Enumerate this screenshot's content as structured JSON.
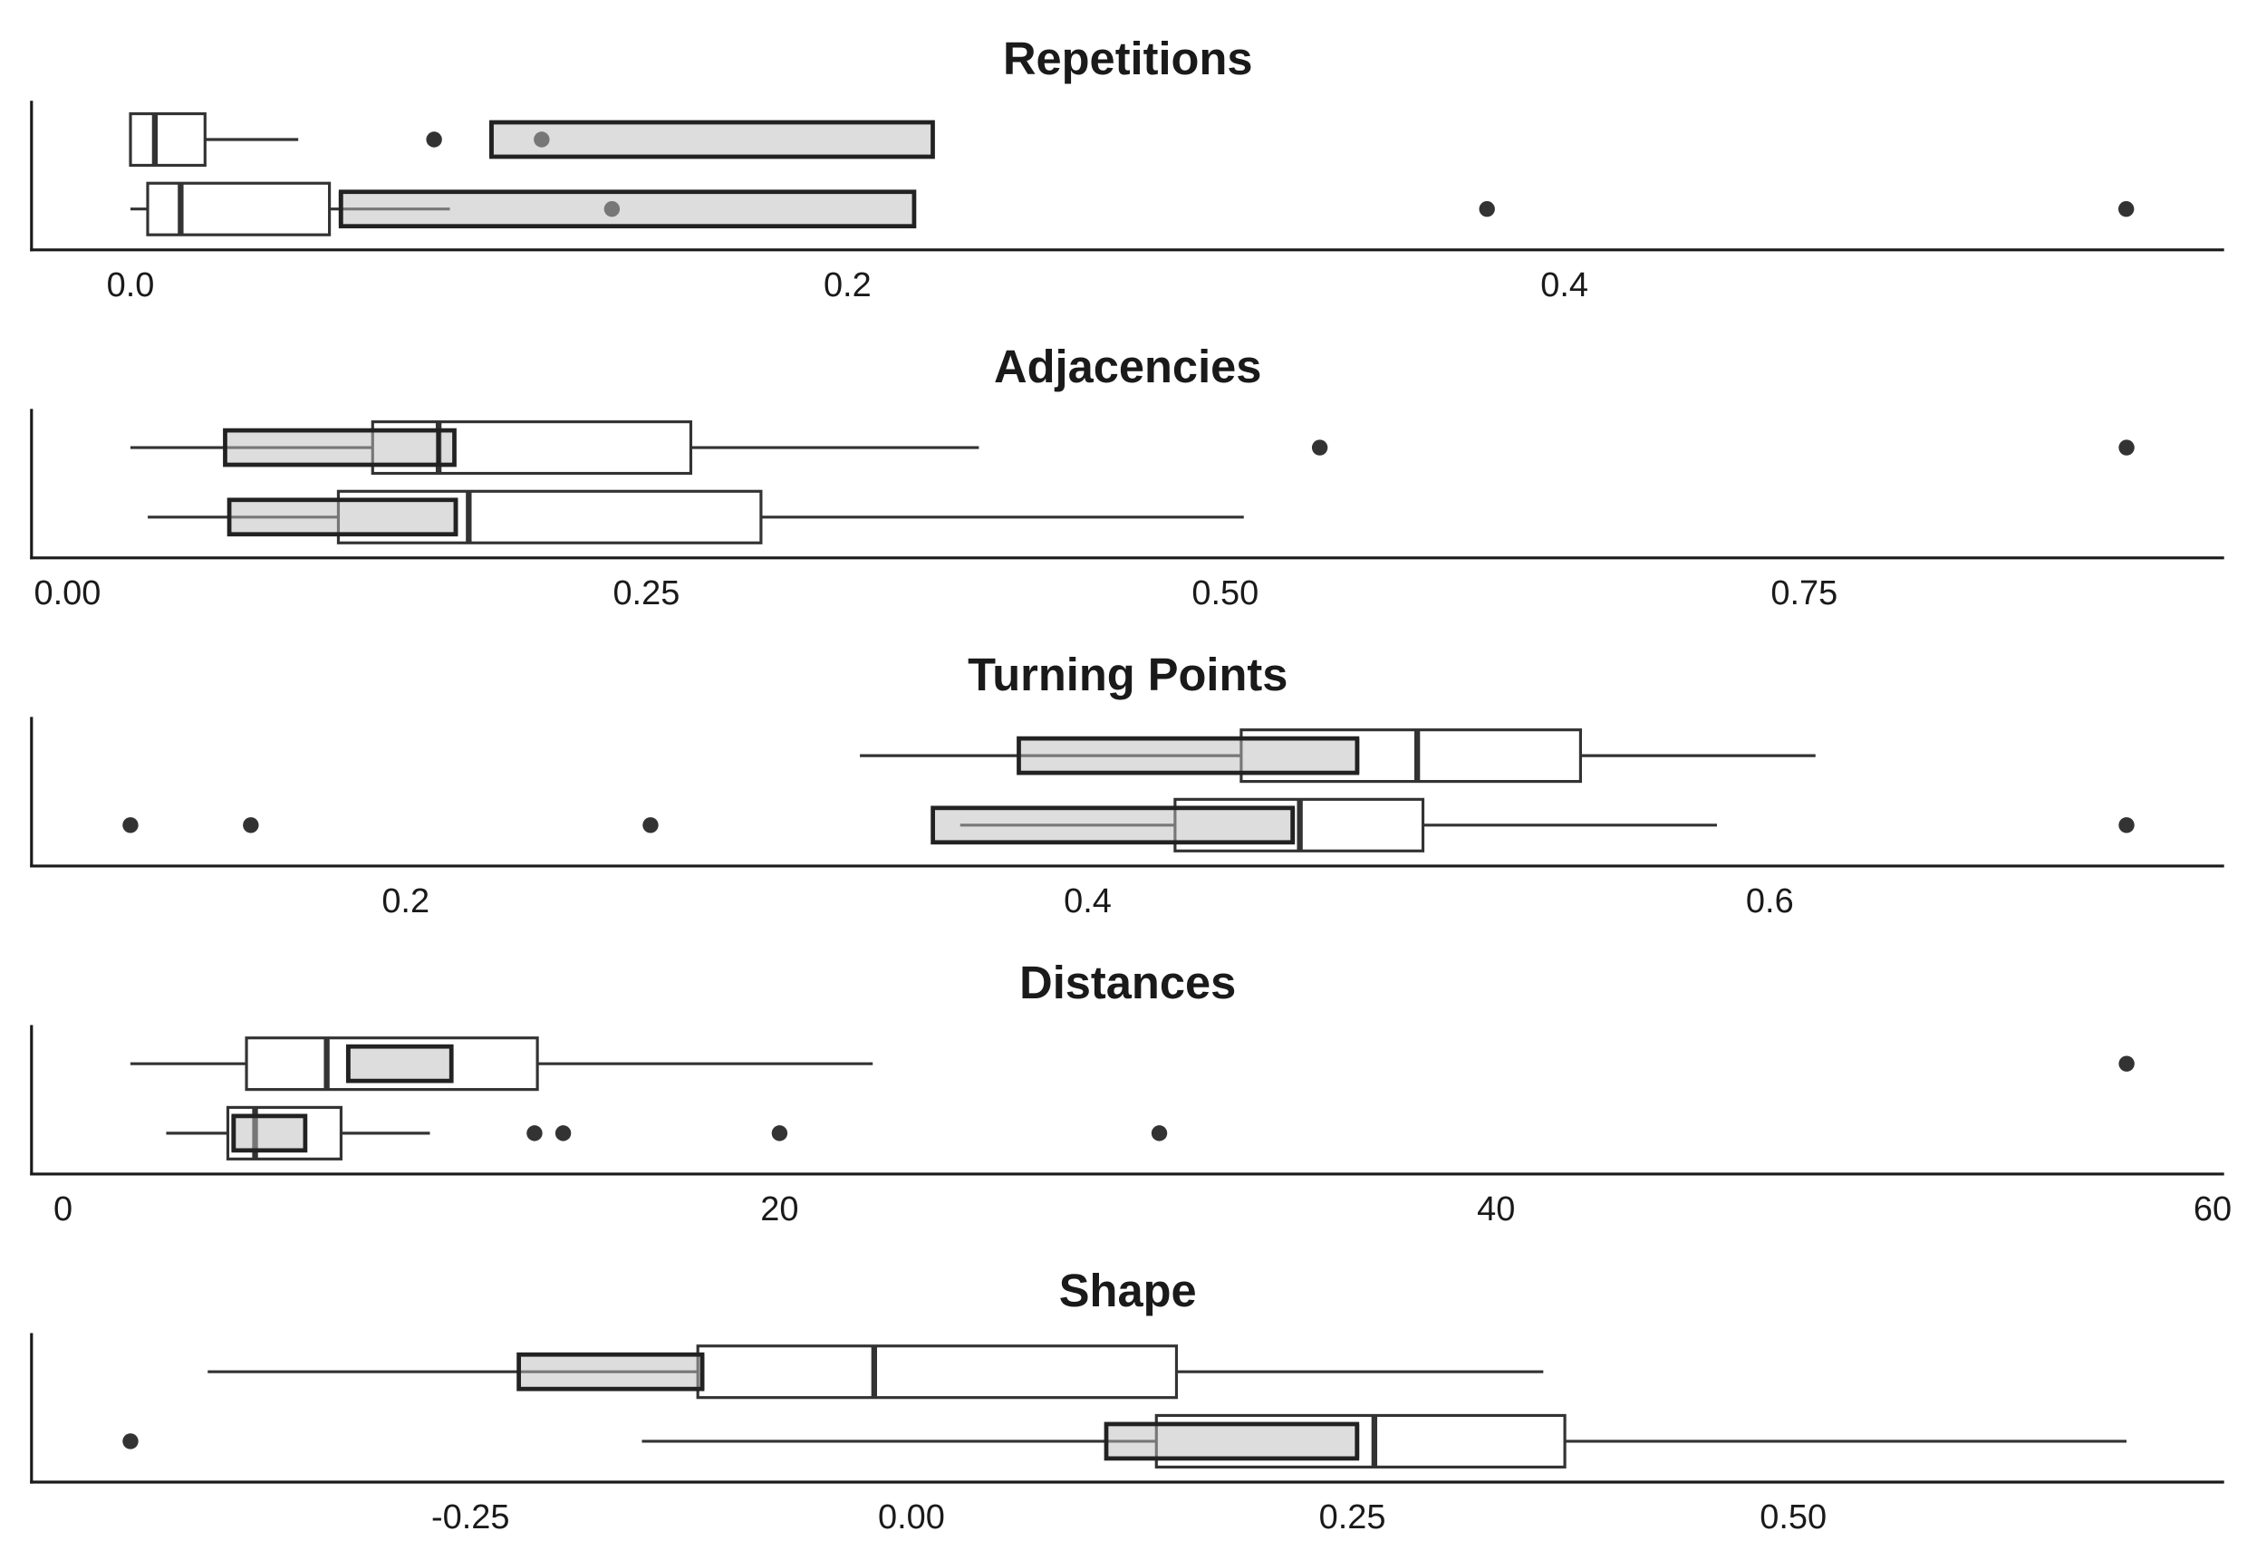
{
  "chart_data": [
    {
      "type": "boxplot",
      "title": "Repetitions",
      "xlim": [
        -0.0276,
        0.584
      ],
      "xticks": [
        {
          "value": 0,
          "label": "0.0"
        },
        0.2,
        0.4
      ],
      "rows": [
        [
          {
            "color": "#ffffff",
            "opacity": 1,
            "low": 0,
            "q1": 0,
            "median": 0.0068,
            "q3": 0.0208,
            "high": 0.0468,
            "outliers": [
              0.0847,
              0.1147
            ]
          },
          {
            "color": "#bbbbbb",
            "opacity": 0.5,
            "low": 0.1007,
            "q1": 0.1007,
            "median": 0.1007,
            "q3": 0.2238,
            "high": 0.2238,
            "outliers": []
          }
        ],
        [
          {
            "color": "#ffffff",
            "opacity": 1,
            "low": 0,
            "q1": 0.0048,
            "median": 0.014,
            "q3": 0.0555,
            "high": 0.0891,
            "outliers": [
              0.1343,
              0.3784,
              0.5567
            ]
          },
          {
            "color": "#bbbbbb",
            "opacity": 0.5,
            "low": 0.0587,
            "q1": 0.0587,
            "median": 0.0587,
            "q3": 0.2186,
            "high": 0.2186,
            "outliers": []
          }
        ]
      ]
    },
    {
      "type": "boxplot",
      "title": "Adjacencies",
      "xlim": [
        -0.0155,
        0.9313
      ],
      "xticks": [
        {
          "value": 0,
          "label": "0.00"
        },
        0.25,
        {
          "value": 0.5,
          "label": "0.50"
        },
        0.75
      ],
      "rows": [
        [
          {
            "color": "#ffffff",
            "opacity": 1,
            "low": 0.0272,
            "q1": 0.1318,
            "median": 0.1603,
            "q3": 0.2692,
            "high": 0.3936,
            "outliers": [
              0.5408,
              0.8892
            ]
          },
          {
            "color": "#bbbbbb",
            "opacity": 0.5,
            "low": 0.0681,
            "q1": 0.0681,
            "median": 0.1603,
            "q3": 0.1671,
            "high": 0.1671,
            "outliers": []
          }
        ],
        [
          {
            "color": "#ffffff",
            "opacity": 1,
            "low": 0.0347,
            "q1": 0.117,
            "median": 0.1733,
            "q3": 0.2995,
            "high": 0.508,
            "outliers": []
          },
          {
            "color": "#bbbbbb",
            "opacity": 0.5,
            "low": 0.0699,
            "q1": 0.0699,
            "median": 0.1677,
            "q3": 0.1677,
            "high": 0.1677,
            "outliers": []
          }
        ]
      ]
    },
    {
      "type": "boxplot",
      "title": "Turning Points",
      "xlim": [
        0.0903,
        0.7332
      ],
      "xticks": [
        0.2,
        0.4,
        0.6
      ],
      "rows": [
        [
          {
            "color": "#ffffff",
            "opacity": 1,
            "low": 0.3332,
            "q1": 0.445,
            "median": 0.4966,
            "q3": 0.5445,
            "high": 0.6134,
            "outliers": []
          },
          {
            "color": "#bbbbbb",
            "opacity": 0.5,
            "low": 0.3798,
            "q1": 0.3798,
            "median": 0.479,
            "q3": 0.479,
            "high": 0.479,
            "outliers": []
          }
        ],
        [
          {
            "color": "#ffffff",
            "opacity": 1,
            "low": 0.3626,
            "q1": 0.4256,
            "median": 0.4622,
            "q3": 0.4983,
            "high": 0.5845,
            "outliers": [
              0.1193,
              0.1546,
              0.2718,
              0.7046
            ]
          },
          {
            "color": "#bbbbbb",
            "opacity": 0.5,
            "low": 0.3546,
            "q1": 0.3546,
            "median": 0.4601,
            "q3": 0.4601,
            "high": 0.4601,
            "outliers": []
          }
        ]
      ]
    },
    {
      "type": "boxplot",
      "title": "Distances",
      "xlim": [
        -0.88,
        60.32
      ],
      "xticks": [
        0,
        20,
        40,
        60
      ],
      "rows": [
        [
          {
            "color": "#ffffff",
            "opacity": 1,
            "low": 1.88,
            "q1": 5.12,
            "median": 7.36,
            "q3": 13.24,
            "high": 22.6,
            "outliers": [
              57.6
            ]
          },
          {
            "color": "#bbbbbb",
            "opacity": 0.5,
            "low": 7.96,
            "q1": 7.96,
            "median": 7.96,
            "q3": 10.84,
            "high": 10.84,
            "outliers": []
          }
        ],
        [
          {
            "color": "#ffffff",
            "opacity": 1,
            "low": 2.88,
            "q1": 4.6,
            "median": 5.36,
            "q3": 7.76,
            "high": 10.24,
            "outliers": [
              13.16,
              13.96,
              20,
              30.6
            ]
          },
          {
            "color": "#bbbbbb",
            "opacity": 0.5,
            "low": 4.76,
            "q1": 4.76,
            "median": 4.76,
            "q3": 6.76,
            "high": 6.76,
            "outliers": []
          }
        ]
      ]
    },
    {
      "type": "boxplot",
      "title": "Shape",
      "xlim": [
        -0.4989,
        0.7443
      ],
      "xticks": [
        -0.25,
        {
          "value": 0,
          "label": "0.00"
        },
        0.25,
        {
          "value": 0.5,
          "label": "0.50"
        }
      ],
      "rows": [
        [
          {
            "color": "#ffffff",
            "opacity": 1,
            "low": -0.399,
            "q1": -0.1211,
            "median": -0.0211,
            "q3": 0.1503,
            "high": 0.3583,
            "outliers": []
          },
          {
            "color": "#bbbbbb",
            "opacity": 0.5,
            "low": -0.2226,
            "q1": -0.2226,
            "median": -0.1186,
            "q3": -0.1186,
            "high": -0.1186,
            "outliers": []
          }
        ],
        [
          {
            "color": "#ffffff",
            "opacity": 1,
            "low": -0.1528,
            "q1": 0.1389,
            "median": 0.2625,
            "q3": 0.3705,
            "high": 0.689,
            "outliers": [
              -0.4428
            ]
          },
          {
            "color": "#bbbbbb",
            "opacity": 0.5,
            "low": 0.1105,
            "q1": 0.1105,
            "median": 0.2527,
            "q3": 0.2527,
            "high": 0.2527,
            "outliers": []
          }
        ]
      ]
    }
  ]
}
